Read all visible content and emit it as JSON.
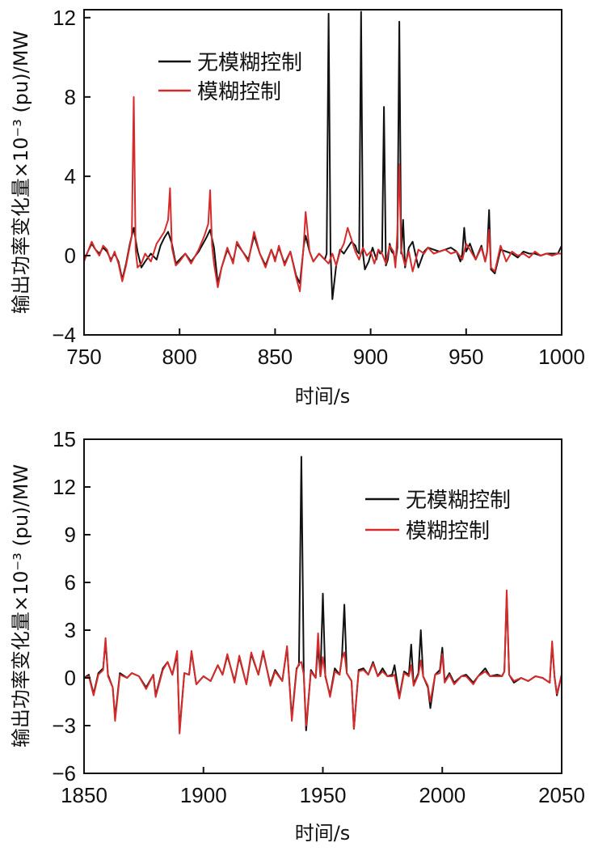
{
  "colors": {
    "no_fuzzy": "#111111",
    "fuzzy": "#d62b2b",
    "axis": "#111111"
  },
  "chart_data": [
    {
      "type": "line",
      "title": "",
      "xlabel": "时间/s",
      "ylabel": "输出功率变化量×10⁻³ (pu)/MW",
      "xlim": [
        750,
        1000
      ],
      "ylim": [
        -4,
        12.4
      ],
      "xticks": [
        750,
        800,
        850,
        900,
        950,
        1000
      ],
      "xtick_labels": [
        "750",
        "800",
        "850",
        "900",
        "950",
        "1000"
      ],
      "yticks": [
        -4,
        0,
        4,
        8,
        12
      ],
      "ytick_labels": [
        "−4",
        "0",
        "4",
        "8",
        "12"
      ],
      "legend": {
        "position": "top-left",
        "entries": [
          "无模糊控制",
          "模糊控制"
        ]
      },
      "series": [
        {
          "name": "无模糊控制",
          "color": "#111111",
          "x": [
            750,
            752,
            754,
            756,
            758,
            760,
            762,
            764,
            766,
            768,
            770,
            772,
            774,
            776,
            778,
            780,
            782,
            785,
            788,
            790,
            792,
            794,
            796,
            798,
            800,
            803,
            806,
            810,
            814,
            816,
            818,
            820,
            822,
            825,
            828,
            830,
            833,
            836,
            839,
            842,
            845,
            848,
            850,
            852,
            855,
            858,
            861,
            863,
            865,
            866,
            868,
            870,
            873,
            876,
            877,
            878,
            879,
            880,
            882,
            884,
            886,
            888,
            890,
            892,
            893,
            894,
            895,
            896,
            897,
            899,
            901,
            903,
            904,
            905,
            906,
            907,
            908,
            909,
            910,
            911,
            912,
            913,
            914,
            915,
            916,
            917,
            918,
            920,
            922,
            925,
            928,
            930,
            933,
            936,
            939,
            942,
            945,
            947,
            948,
            949,
            950,
            952,
            955,
            958,
            960,
            961,
            962,
            963,
            965,
            968,
            971,
            974,
            977,
            980,
            983,
            986,
            989,
            992,
            995,
            998,
            1000
          ],
          "y": [
            -0.2,
            0.2,
            0.6,
            0.3,
            0.1,
            0.4,
            0.2,
            -0.2,
            0.1,
            -0.3,
            -1.2,
            -0.4,
            0.6,
            1.4,
            0.2,
            -0.6,
            -0.3,
            0.1,
            -0.2,
            0.5,
            0.9,
            1.2,
            0.6,
            -0.4,
            -0.2,
            0.1,
            -0.3,
            0.2,
            0.9,
            1.3,
            0.4,
            -1.4,
            -0.6,
            0.3,
            -0.3,
            0.6,
            0.2,
            -0.2,
            1.0,
            0.1,
            -0.5,
            0.3,
            -0.2,
            0.4,
            -0.4,
            0.2,
            -1.0,
            -1.4,
            0.5,
            1.0,
            0.2,
            -0.3,
            0.1,
            -0.2,
            0.1,
            12.2,
            0.1,
            -2.2,
            -0.5,
            0.3,
            0.1,
            0.4,
            0.7,
            0.5,
            0.2,
            0.1,
            12.3,
            0.1,
            -0.7,
            -0.3,
            0.4,
            -0.2,
            0.3,
            0.1,
            0.2,
            7.5,
            -0.5,
            -0.2,
            0.6,
            0.2,
            0.1,
            -0.3,
            0.4,
            11.8,
            0.1,
            1.8,
            -0.6,
            0.4,
            0.7,
            -0.6,
            0.2,
            0.4,
            0.3,
            0.2,
            0.3,
            0.4,
            0.2,
            -0.3,
            0.1,
            1.4,
            0.2,
            0.6,
            -0.2,
            0.5,
            -0.3,
            0.2,
            2.3,
            -0.7,
            -0.9,
            0.3,
            0.2,
            0.1,
            -0.1,
            0.2,
            0.1,
            0.1,
            0.0,
            0.1,
            0.1,
            0.1,
            0.5
          ]
        },
        {
          "name": "模糊控制",
          "color": "#d62b2b",
          "x": [
            750,
            752,
            754,
            756,
            758,
            760,
            762,
            764,
            766,
            768,
            770,
            772,
            774,
            775,
            776,
            777,
            778,
            780,
            782,
            785,
            788,
            790,
            792,
            794,
            795,
            796,
            798,
            800,
            803,
            806,
            810,
            813,
            815,
            816,
            817,
            818,
            820,
            822,
            825,
            828,
            830,
            833,
            836,
            839,
            842,
            845,
            848,
            850,
            852,
            855,
            858,
            861,
            863,
            865,
            866,
            868,
            870,
            873,
            876,
            878,
            880,
            882,
            884,
            886,
            888,
            890,
            892,
            894,
            896,
            898,
            900,
            902,
            904,
            906,
            908,
            910,
            912,
            913,
            914,
            915,
            916,
            918,
            920,
            922,
            925,
            928,
            930,
            933,
            936,
            939,
            942,
            945,
            948,
            950,
            952,
            955,
            958,
            960,
            961,
            962,
            963,
            965,
            968,
            971,
            974,
            977,
            980,
            983,
            986,
            989,
            992,
            995,
            998,
            1000
          ],
          "y": [
            -0.3,
            0.2,
            0.7,
            0.3,
            0.0,
            0.5,
            0.3,
            -0.3,
            0.2,
            -0.4,
            -1.3,
            -0.5,
            0.5,
            1.0,
            8.0,
            0.3,
            -0.6,
            -0.4,
            0.1,
            -0.3,
            0.6,
            0.9,
            1.2,
            1.8,
            3.4,
            0.4,
            -0.5,
            -0.3,
            0.1,
            -0.4,
            0.3,
            1.0,
            1.6,
            3.3,
            0.5,
            -0.4,
            -1.6,
            -0.6,
            0.4,
            -0.4,
            0.7,
            0.2,
            -0.3,
            1.2,
            0.1,
            -0.6,
            0.3,
            -0.3,
            0.5,
            -0.5,
            0.2,
            -1.1,
            -1.8,
            0.6,
            2.2,
            0.2,
            -0.3,
            0.1,
            -0.2,
            -0.4,
            0.1,
            -0.5,
            0.2,
            0.6,
            1.4,
            0.8,
            0.2,
            -0.2,
            0.4,
            0.0,
            0.2,
            -0.4,
            0.3,
            0.1,
            -0.4,
            0.5,
            0.2,
            -0.6,
            1.2,
            4.6,
            0.3,
            -0.5,
            0.2,
            -0.8,
            0.3,
            0.1,
            0.4,
            0.1,
            0.2,
            0.3,
            0.1,
            0.2,
            -0.2,
            0.6,
            0.3,
            -0.2,
            0.4,
            -0.3,
            0.2,
            1.3,
            -0.6,
            -0.8,
            0.5,
            -0.3,
            0.2,
            0.0,
            0.1,
            -0.1,
            0.2,
            0.0,
            0.1,
            0.0,
            0.1,
            0.1
          ]
        }
      ]
    },
    {
      "type": "line",
      "title": "",
      "xlabel": "时间/s",
      "ylabel": "输出功率变化量×10⁻³ (pu)/MW",
      "xlim": [
        1850,
        2050
      ],
      "ylim": [
        -6,
        15
      ],
      "xticks": [
        1850,
        1900,
        1950,
        2000,
        2050
      ],
      "xtick_labels": [
        "1850",
        "1900",
        "1950",
        "2000",
        "2050"
      ],
      "yticks": [
        -6,
        -3,
        0,
        3,
        6,
        9,
        12,
        15
      ],
      "ytick_labels": [
        "−6",
        "−3",
        "0",
        "3",
        "6",
        "9",
        "12",
        "15"
      ],
      "legend": {
        "position": "top-right",
        "entries": [
          "无模糊控制",
          "模糊控制"
        ]
      },
      "series": [
        {
          "name": "无模糊控制",
          "color": "#111111",
          "x": [
            1850,
            1852,
            1854,
            1856,
            1858,
            1859,
            1860,
            1862,
            1863,
            1865,
            1868,
            1870,
            1873,
            1876,
            1879,
            1880,
            1883,
            1885,
            1887,
            1889,
            1890,
            1892,
            1894,
            1895,
            1897,
            1900,
            1903,
            1906,
            1908,
            1910,
            1913,
            1915,
            1918,
            1920,
            1923,
            1925,
            1928,
            1930,
            1933,
            1935,
            1937,
            1939,
            1940,
            1941,
            1942,
            1943,
            1945,
            1947,
            1948,
            1949,
            1950,
            1951,
            1953,
            1955,
            1957,
            1958,
            1959,
            1960,
            1962,
            1963,
            1965,
            1967,
            1969,
            1971,
            1973,
            1975,
            1977,
            1979,
            1980,
            1982,
            1984,
            1986,
            1987,
            1988,
            1990,
            1991,
            1992,
            1994,
            1995,
            1997,
            1999,
            2000,
            2001,
            2003,
            2005,
            2008,
            2010,
            2013,
            2015,
            2018,
            2020,
            2023,
            2025,
            2026,
            2027,
            2028,
            2030,
            2033,
            2036,
            2039,
            2042,
            2045,
            2046,
            2047,
            2048,
            2050
          ],
          "y": [
            0.0,
            0.2,
            -1.0,
            0.3,
            0.6,
            2.3,
            0.2,
            -0.6,
            -2.5,
            0.3,
            0.0,
            0.3,
            0.1,
            -0.6,
            0.2,
            -1.1,
            0.6,
            1.0,
            0.2,
            1.5,
            -3.3,
            0.3,
            0.2,
            1.6,
            -0.4,
            0.1,
            -0.2,
            0.8,
            0.2,
            1.4,
            -0.2,
            1.3,
            -0.4,
            1.5,
            0.2,
            1.6,
            -0.4,
            0.5,
            -0.2,
            1.9,
            -2.5,
            0.6,
            0.8,
            13.9,
            0.2,
            -3.3,
            0.5,
            0.0,
            2.0,
            0.1,
            5.3,
            0.1,
            -1.1,
            0.6,
            0.2,
            1.3,
            4.6,
            0.3,
            -0.2,
            -3.2,
            0.5,
            0.6,
            0.2,
            1.0,
            0.1,
            0.6,
            0.1,
            0.2,
            0.8,
            -1.2,
            0.4,
            0.2,
            2.1,
            -0.4,
            0.3,
            3.0,
            0.1,
            -0.6,
            -1.9,
            0.2,
            0.5,
            1.9,
            -0.2,
            0.3,
            -0.3,
            0.1,
            0.2,
            -0.3,
            0.1,
            0.6,
            0.1,
            0.2,
            0.1,
            0.4,
            5.2,
            0.2,
            -0.3,
            0.0,
            -0.2,
            0.1,
            0.0,
            -0.3,
            2.1,
            0.1,
            -1.1,
            0.2
          ]
        },
        {
          "name": "模糊控制",
          "color": "#d62b2b",
          "x": [
            1850,
            1852,
            1854,
            1856,
            1858,
            1859,
            1860,
            1862,
            1863,
            1865,
            1868,
            1870,
            1873,
            1876,
            1879,
            1880,
            1883,
            1885,
            1887,
            1889,
            1890,
            1892,
            1894,
            1895,
            1897,
            1900,
            1903,
            1906,
            1908,
            1910,
            1913,
            1915,
            1918,
            1920,
            1923,
            1925,
            1928,
            1930,
            1933,
            1935,
            1937,
            1939,
            1940,
            1941,
            1942,
            1943,
            1945,
            1947,
            1948,
            1949,
            1950,
            1951,
            1953,
            1955,
            1957,
            1958,
            1959,
            1960,
            1962,
            1963,
            1965,
            1967,
            1969,
            1971,
            1973,
            1975,
            1977,
            1979,
            1980,
            1982,
            1984,
            1986,
            1987,
            1988,
            1990,
            1991,
            1992,
            1994,
            1995,
            1997,
            1999,
            2000,
            2001,
            2003,
            2005,
            2008,
            2010,
            2013,
            2015,
            2018,
            2020,
            2023,
            2025,
            2026,
            2027,
            2028,
            2030,
            2033,
            2036,
            2039,
            2042,
            2045,
            2046,
            2047,
            2048,
            2050
          ],
          "y": [
            0.0,
            0.1,
            -1.1,
            0.2,
            0.5,
            2.5,
            0.1,
            -0.6,
            -2.7,
            0.2,
            0.0,
            0.3,
            0.1,
            -0.7,
            0.2,
            -1.2,
            0.5,
            1.0,
            0.2,
            1.7,
            -3.5,
            0.3,
            0.2,
            1.7,
            -0.4,
            0.1,
            -0.2,
            0.8,
            0.2,
            1.5,
            -0.3,
            1.4,
            -0.4,
            1.6,
            0.2,
            1.7,
            -0.5,
            0.4,
            -0.2,
            2.0,
            -2.7,
            0.5,
            0.9,
            1.0,
            0.2,
            -3.0,
            0.4,
            0.0,
            2.8,
            0.1,
            1.3,
            0.2,
            -1.2,
            0.4,
            0.2,
            1.2,
            1.6,
            0.3,
            -0.2,
            -3.2,
            0.4,
            0.5,
            0.2,
            0.9,
            0.1,
            0.4,
            0.1,
            0.1,
            0.2,
            -1.3,
            0.3,
            0.1,
            0.8,
            -0.5,
            0.2,
            1.1,
            0.1,
            -0.5,
            -1.5,
            0.2,
            0.3,
            1.5,
            -0.3,
            0.2,
            -0.4,
            0.1,
            0.1,
            -0.4,
            0.1,
            0.4,
            0.1,
            0.1,
            0.1,
            0.4,
            5.5,
            0.2,
            -0.2,
            0.0,
            -0.2,
            0.1,
            0.0,
            -0.3,
            2.3,
            0.1,
            -1.0,
            0.2
          ]
        }
      ]
    }
  ]
}
